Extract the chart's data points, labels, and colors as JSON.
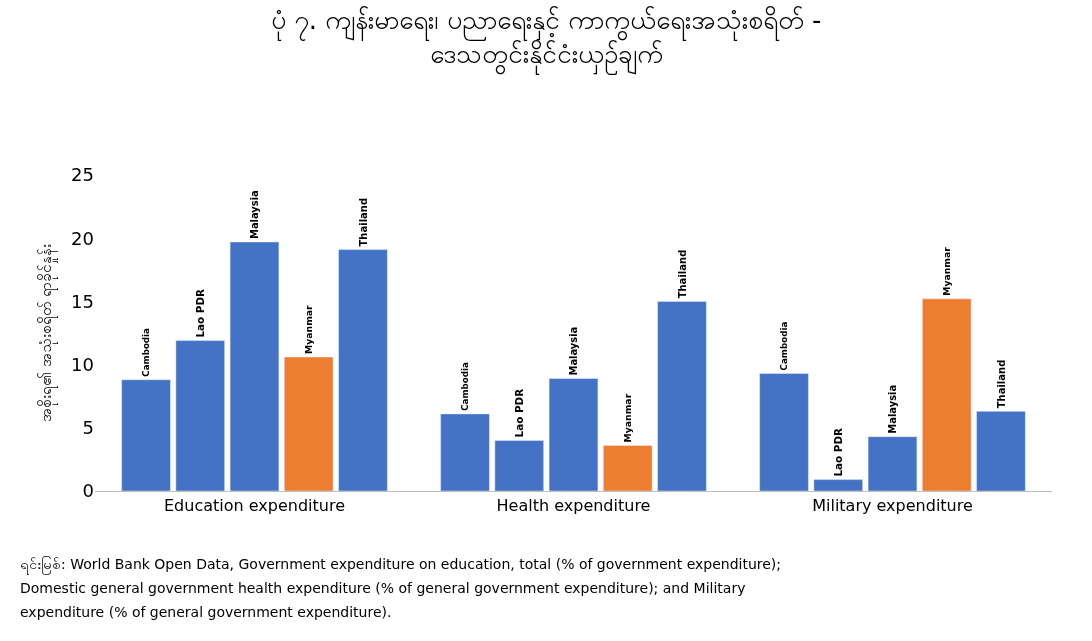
{
  "chart_data": {
    "type": "bar",
    "title": "ပုံ ၇. ကျန်းမာရေး၊ ပညာရေးနှင့် ကာကွယ်ရေးအသုံးစရိတ် -\nဒေသတွင်းနိုင်ငံးယှဉ်ချက်",
    "ylabel": "အစိုးရ၏ အသုံးစရိတ် ရာခိုင်နှုန်း",
    "categories": [
      "Education expenditure",
      "Health expenditure",
      "Military expenditure"
    ],
    "series": [
      {
        "name": "Cambodia",
        "color": "#4472c4",
        "values": [
          8.8,
          6.1,
          9.3
        ]
      },
      {
        "name": "Lao PDR",
        "color": "#4472c4",
        "values": [
          11.9,
          4.0,
          0.9
        ]
      },
      {
        "name": "Malaysia",
        "color": "#4472c4",
        "values": [
          19.7,
          8.9,
          4.3
        ]
      },
      {
        "name": "Myanmar",
        "color": "#ed7d31",
        "values": [
          10.6,
          3.6,
          15.2
        ]
      },
      {
        "name": "Thailand",
        "color": "#4472c4",
        "values": [
          19.1,
          15.0,
          6.3
        ]
      }
    ],
    "ylim": [
      0,
      25
    ],
    "yticks": [
      0,
      5,
      10,
      15,
      20,
      25
    ],
    "legend": false,
    "annotations": [
      "ရင်းမြစ်: World Bank Open Data, Government expenditure on education, total (% of government expenditure);",
      "Domestic general government health expenditure (% of general government expenditure); and Military",
      "expenditure (% of general government expenditure)."
    ]
  }
}
